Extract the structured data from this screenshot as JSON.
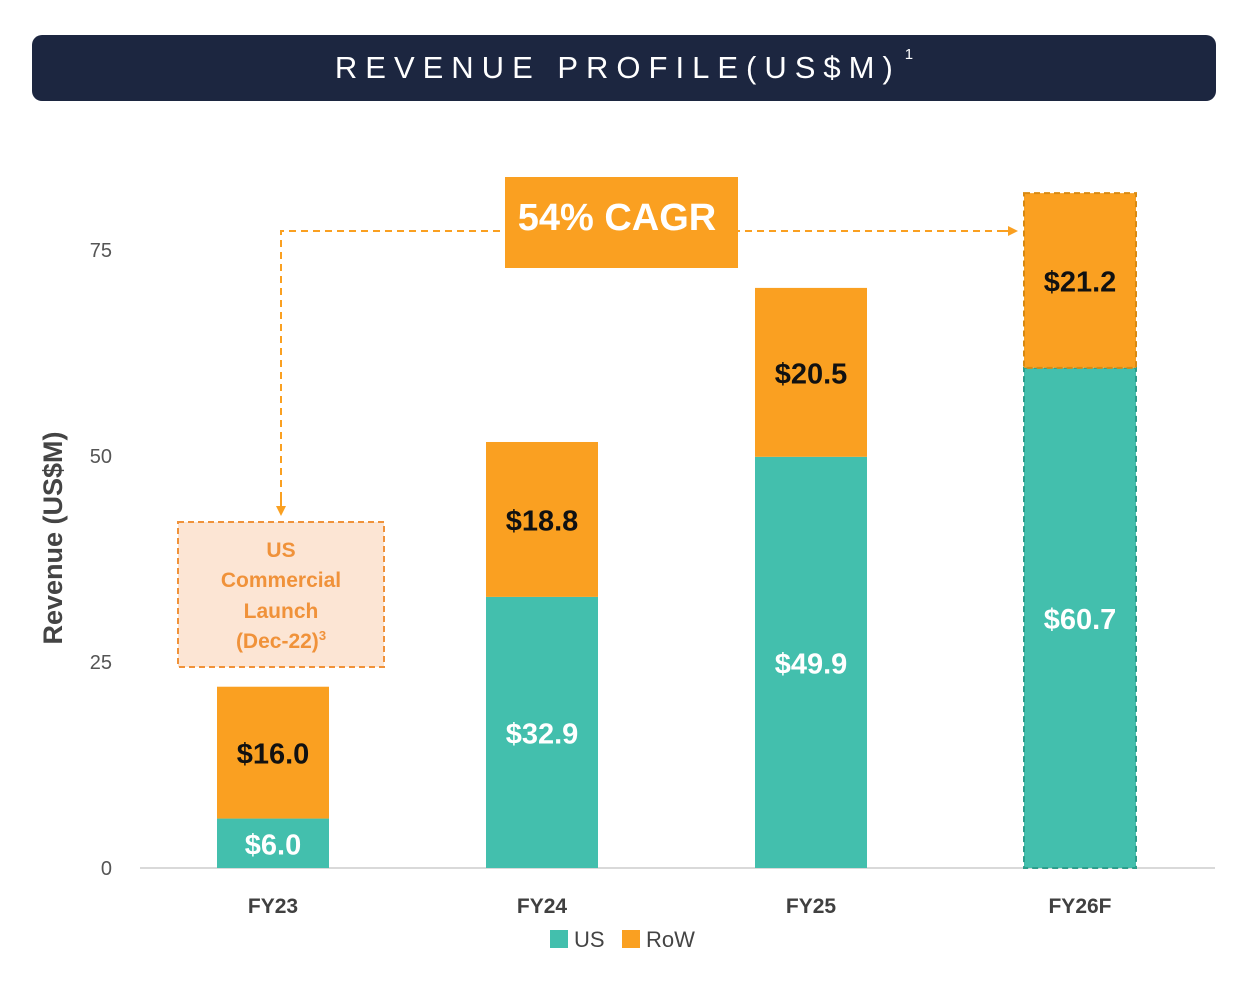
{
  "header": {
    "title": "REVENUE PROFILE(US$M)",
    "footnote": "1"
  },
  "colors": {
    "us": "#43bfad",
    "row": "#faa021",
    "header_bg": "#1c2640",
    "note_border": "#f0923a",
    "note_fill": "#fce5d4"
  },
  "chart_data": {
    "type": "bar",
    "stacked": true,
    "title": "REVENUE PROFILE(US$M)",
    "xlabel": "",
    "ylabel": "Revenue (US$M)",
    "ylim": [
      0,
      82
    ],
    "yticks": [
      "0",
      "25",
      "50",
      "75"
    ],
    "categories": [
      "FY23",
      "FY24",
      "FY25",
      "FY26F"
    ],
    "forecast": [
      false,
      false,
      false,
      true
    ],
    "series": [
      {
        "name": "US",
        "values": [
          6.0,
          32.9,
          49.9,
          60.7
        ],
        "labels": [
          "$6.0",
          "$32.9",
          "$49.9",
          "$60.7"
        ]
      },
      {
        "name": "RoW",
        "values": [
          16.0,
          18.8,
          20.5,
          21.2
        ],
        "labels": [
          "$16.0",
          "$18.8",
          "$20.5",
          "$21.2"
        ]
      }
    ],
    "legend": [
      "US",
      "RoW"
    ],
    "legend_position": "bottom",
    "annotations": {
      "cagr": "54% CAGR",
      "launch_note": {
        "lines": [
          "US",
          "Commercial",
          "Launch",
          "(Dec-22)"
        ],
        "sup": "3"
      }
    }
  }
}
